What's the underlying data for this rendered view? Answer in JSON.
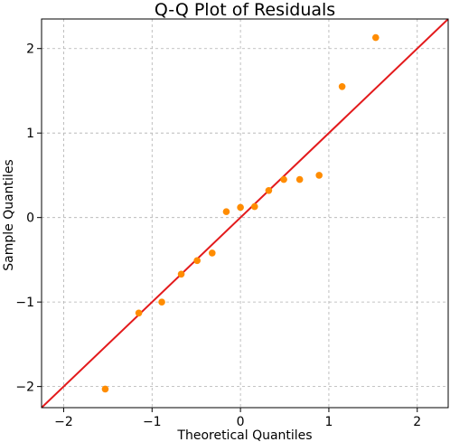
{
  "chart_data": {
    "type": "scatter",
    "title": "Q-Q Plot of Residuals",
    "xlabel": "Theoretical Quantiles",
    "ylabel": "Sample Quantiles",
    "xlim": [
      -2.25,
      2.35
    ],
    "ylim": [
      -2.25,
      2.35
    ],
    "xticks": [
      -2,
      -1,
      0,
      1,
      2
    ],
    "yticks": [
      -2,
      -1,
      0,
      1,
      2
    ],
    "xtick_labels": [
      "−2",
      "−1",
      "0",
      "1",
      "2"
    ],
    "ytick_labels": [
      "−2",
      "−1",
      "0",
      "1",
      "2"
    ],
    "grid": true,
    "point_color": "#ff8c00",
    "line_color": "#e31a1c",
    "reference_line": {
      "slope": 1,
      "intercept": 0
    },
    "points": [
      {
        "x": -1.53,
        "y": -2.03
      },
      {
        "x": -1.15,
        "y": -1.13
      },
      {
        "x": -0.89,
        "y": -1.0
      },
      {
        "x": -0.67,
        "y": -0.67
      },
      {
        "x": -0.49,
        "y": -0.51
      },
      {
        "x": -0.32,
        "y": -0.42
      },
      {
        "x": -0.16,
        "y": 0.07
      },
      {
        "x": 0.0,
        "y": 0.12
      },
      {
        "x": 0.16,
        "y": 0.13
      },
      {
        "x": 0.32,
        "y": 0.32
      },
      {
        "x": 0.49,
        "y": 0.45
      },
      {
        "x": 0.67,
        "y": 0.45
      },
      {
        "x": 0.89,
        "y": 0.5
      },
      {
        "x": 1.15,
        "y": 1.55
      },
      {
        "x": 1.53,
        "y": 2.13
      }
    ]
  }
}
